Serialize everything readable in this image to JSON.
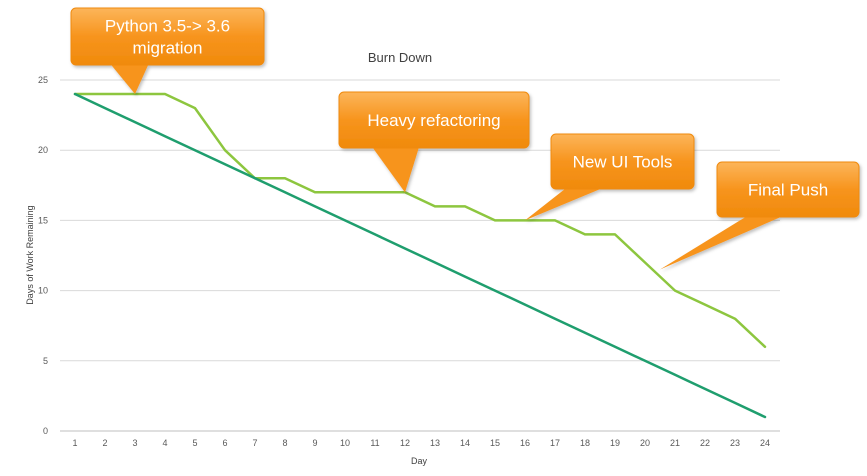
{
  "chart_data": {
    "type": "line",
    "title": "Burn Down",
    "xlabel": "Day",
    "ylabel": "Days of Work Remaining",
    "x": [
      1,
      2,
      3,
      4,
      5,
      6,
      7,
      8,
      9,
      10,
      11,
      12,
      13,
      14,
      15,
      16,
      17,
      18,
      19,
      20,
      21,
      22,
      23,
      24
    ],
    "xlim": [
      0.5,
      24.5
    ],
    "ylim": [
      0,
      25
    ],
    "yticks": [
      0,
      5,
      10,
      15,
      20,
      25
    ],
    "grid": true,
    "legend": "none",
    "series": [
      {
        "color": "#8dc63f",
        "values": [
          24,
          24,
          24,
          24,
          23,
          20,
          18,
          18,
          17,
          17,
          17,
          17,
          16,
          16,
          15,
          15,
          15,
          14,
          14,
          12,
          10,
          9,
          8,
          6
        ]
      },
      {
        "color": "#1f9e6e",
        "values": [
          24,
          23,
          22,
          21,
          20,
          19,
          18,
          17,
          16,
          15,
          14,
          13,
          12,
          11,
          10,
          9,
          8,
          7,
          6,
          5,
          4,
          3,
          2,
          1
        ]
      }
    ],
    "annotations": [
      {
        "text": [
          "Python 3.5-> 3.6",
          "migration"
        ],
        "target_x": 3,
        "target_y": 24
      },
      {
        "text": [
          "Heavy refactoring"
        ],
        "target_x": 12,
        "target_y": 17
      },
      {
        "text": [
          "New UI Tools"
        ],
        "target_x": 16,
        "target_y": 15
      },
      {
        "text": [
          "Final Push"
        ],
        "target_x": 20.5,
        "target_y": 11.5
      }
    ],
    "callout_color": "#f7941d"
  }
}
